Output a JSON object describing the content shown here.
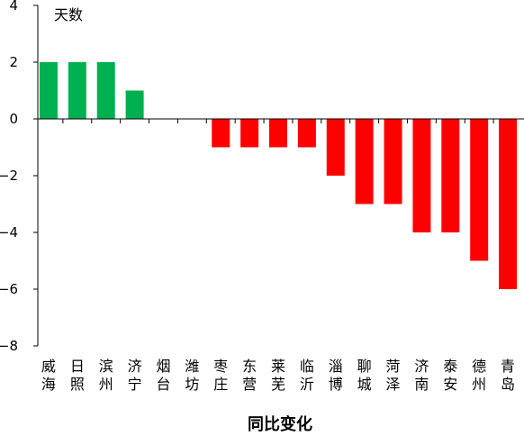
{
  "chart_data": {
    "type": "bar",
    "title": "",
    "unit_label": "天数",
    "xlabel": "同比变化",
    "ylabel": "",
    "ylim": [
      -8,
      4
    ],
    "yticks": [
      4,
      2,
      0,
      -2,
      -4,
      -6,
      -8
    ],
    "ytick_labels": [
      "4",
      "2",
      "0",
      "−2",
      "−4",
      "−6",
      "−8"
    ],
    "grid": false,
    "categories": [
      [
        "威",
        "海"
      ],
      [
        "日",
        "照"
      ],
      [
        "滨",
        "州"
      ],
      [
        "济",
        "宁"
      ],
      [
        "烟",
        "台"
      ],
      [
        "潍",
        "坊"
      ],
      [
        "枣",
        "庄"
      ],
      [
        "东",
        "营"
      ],
      [
        "莱",
        "芜"
      ],
      [
        "临",
        "沂"
      ],
      [
        "淄",
        "博"
      ],
      [
        "聊",
        "城"
      ],
      [
        "菏",
        "泽"
      ],
      [
        "济",
        "南"
      ],
      [
        "泰",
        "安"
      ],
      [
        "德",
        "州"
      ],
      [
        "青",
        "岛"
      ]
    ],
    "values": [
      2,
      2,
      2,
      1,
      0,
      0,
      -1,
      -1,
      -1,
      -1,
      -2,
      -3,
      -3,
      -4,
      -4,
      -5,
      -6
    ],
    "colors": {
      "positive": "#00b050",
      "negative": "#ff0000",
      "axis": "#000000"
    }
  }
}
